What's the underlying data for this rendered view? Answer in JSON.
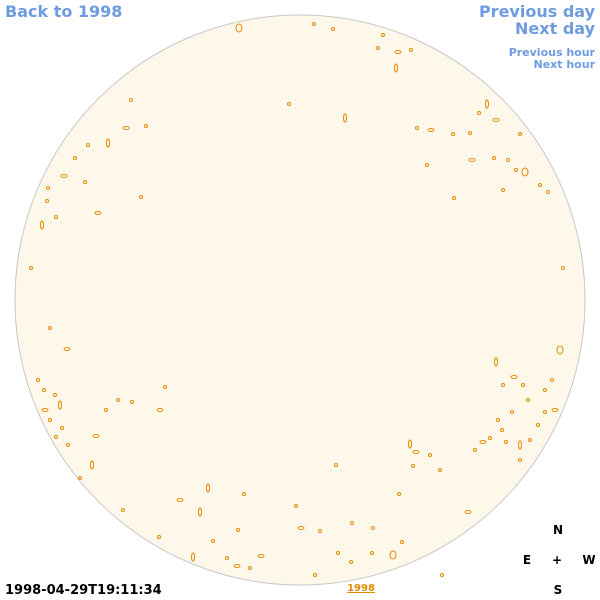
{
  "navigation": {
    "back_year": "Back to 1998",
    "previous_day": "Previous day",
    "next_day": "Next day",
    "previous_hour": "Previous hour",
    "next_hour": "Next hour"
  },
  "compass": {
    "north": "N",
    "east": "E",
    "center": "+",
    "west": "W",
    "south": "S"
  },
  "timestamp": "1998-04-29T19:11:34",
  "year_link": "1998"
}
